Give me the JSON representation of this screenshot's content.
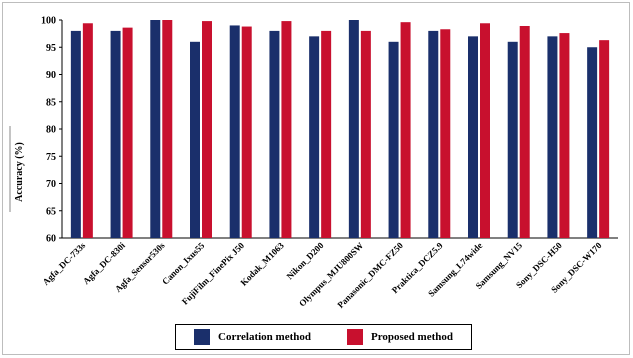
{
  "chart_data": {
    "type": "bar",
    "ylabel": "Accuracy (%)",
    "ylim": [
      60,
      100
    ],
    "yticks": [
      "60",
      "65",
      "70",
      "75",
      "80",
      "85",
      "90",
      "95",
      "100"
    ],
    "categories": [
      "Agfa_DC-733s",
      "Agfa_DC-830i",
      "Agfa_Sensor530s",
      "Canon_Ixus55",
      "FujiFilm_FinePix J50",
      "Kodak_M1063",
      "Nikon_D200",
      "Olympus_MJU800SW",
      "Panasonic_DMC-FZ50",
      "Praktica_DCZ5.9",
      "Samsung_L74wide",
      "Samsung_NV15",
      "Sony_DSC-H50",
      "Sony_DSC-W170"
    ],
    "series": [
      {
        "name": "Correlation method",
        "color": "#1a2f6b",
        "values": [
          98,
          98,
          100,
          96,
          99,
          98,
          97,
          100,
          96,
          98,
          97,
          96,
          97,
          95
        ]
      },
      {
        "name": "Proposed method",
        "color": "#c8102e",
        "values": [
          99.4,
          98.6,
          100,
          99.8,
          98.8,
          99.8,
          98,
          98,
          99.6,
          98.3,
          99.4,
          98.9,
          97.6,
          96.3
        ]
      }
    ],
    "grid": false,
    "legend": "bottom"
  }
}
